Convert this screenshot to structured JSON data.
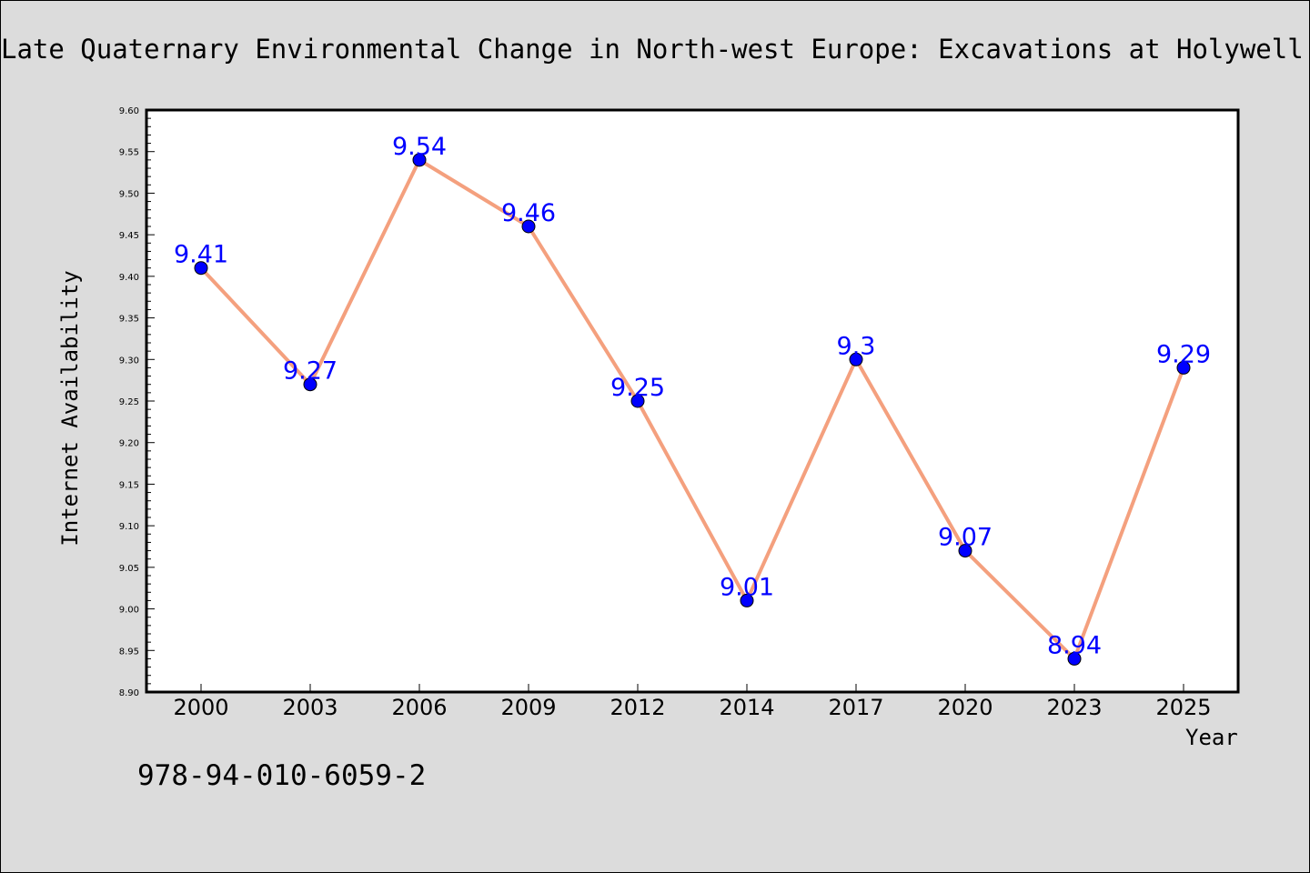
{
  "title": "Late Quaternary Environmental Change in North-west Europe: Excavations at Holywell Coombe, South-east England",
  "footer_code": "978-94-010-6059-2",
  "chart_data": {
    "type": "line",
    "title": "Late Quaternary Environmental Change in North-west Europe: Excavations at Holywell Coombe, South-east England",
    "xlabel": "Year",
    "ylabel": "Internet Availability",
    "categories": [
      "2000",
      "2003",
      "2006",
      "2009",
      "2012",
      "2014",
      "2017",
      "2020",
      "2023",
      "2025"
    ],
    "series": [
      {
        "values": [
          9.41,
          9.27,
          9.54,
          9.46,
          9.25,
          9.01,
          9.3,
          9.07,
          8.94,
          9.29
        ],
        "data_labels": [
          "9.41",
          "9.27",
          "9.54",
          "9.46",
          "9.25",
          "9.01",
          "9.3",
          "9.07",
          "8.94",
          "9.29"
        ]
      }
    ],
    "ylim": [
      8.9,
      9.6
    ],
    "yticks": [
      "8.90",
      "8.95",
      "9.00",
      "9.05",
      "9.10",
      "9.15",
      "9.20",
      "9.25",
      "9.30",
      "9.35",
      "9.40",
      "9.45",
      "9.50",
      "9.55",
      "9.60"
    ],
    "grid": false,
    "legend": "none",
    "colors": {
      "line": "#f4a07e",
      "marker": "#0000ff",
      "label": "#0000ff",
      "background": "#dcdcdc",
      "plot_background": "#ffffff"
    }
  }
}
